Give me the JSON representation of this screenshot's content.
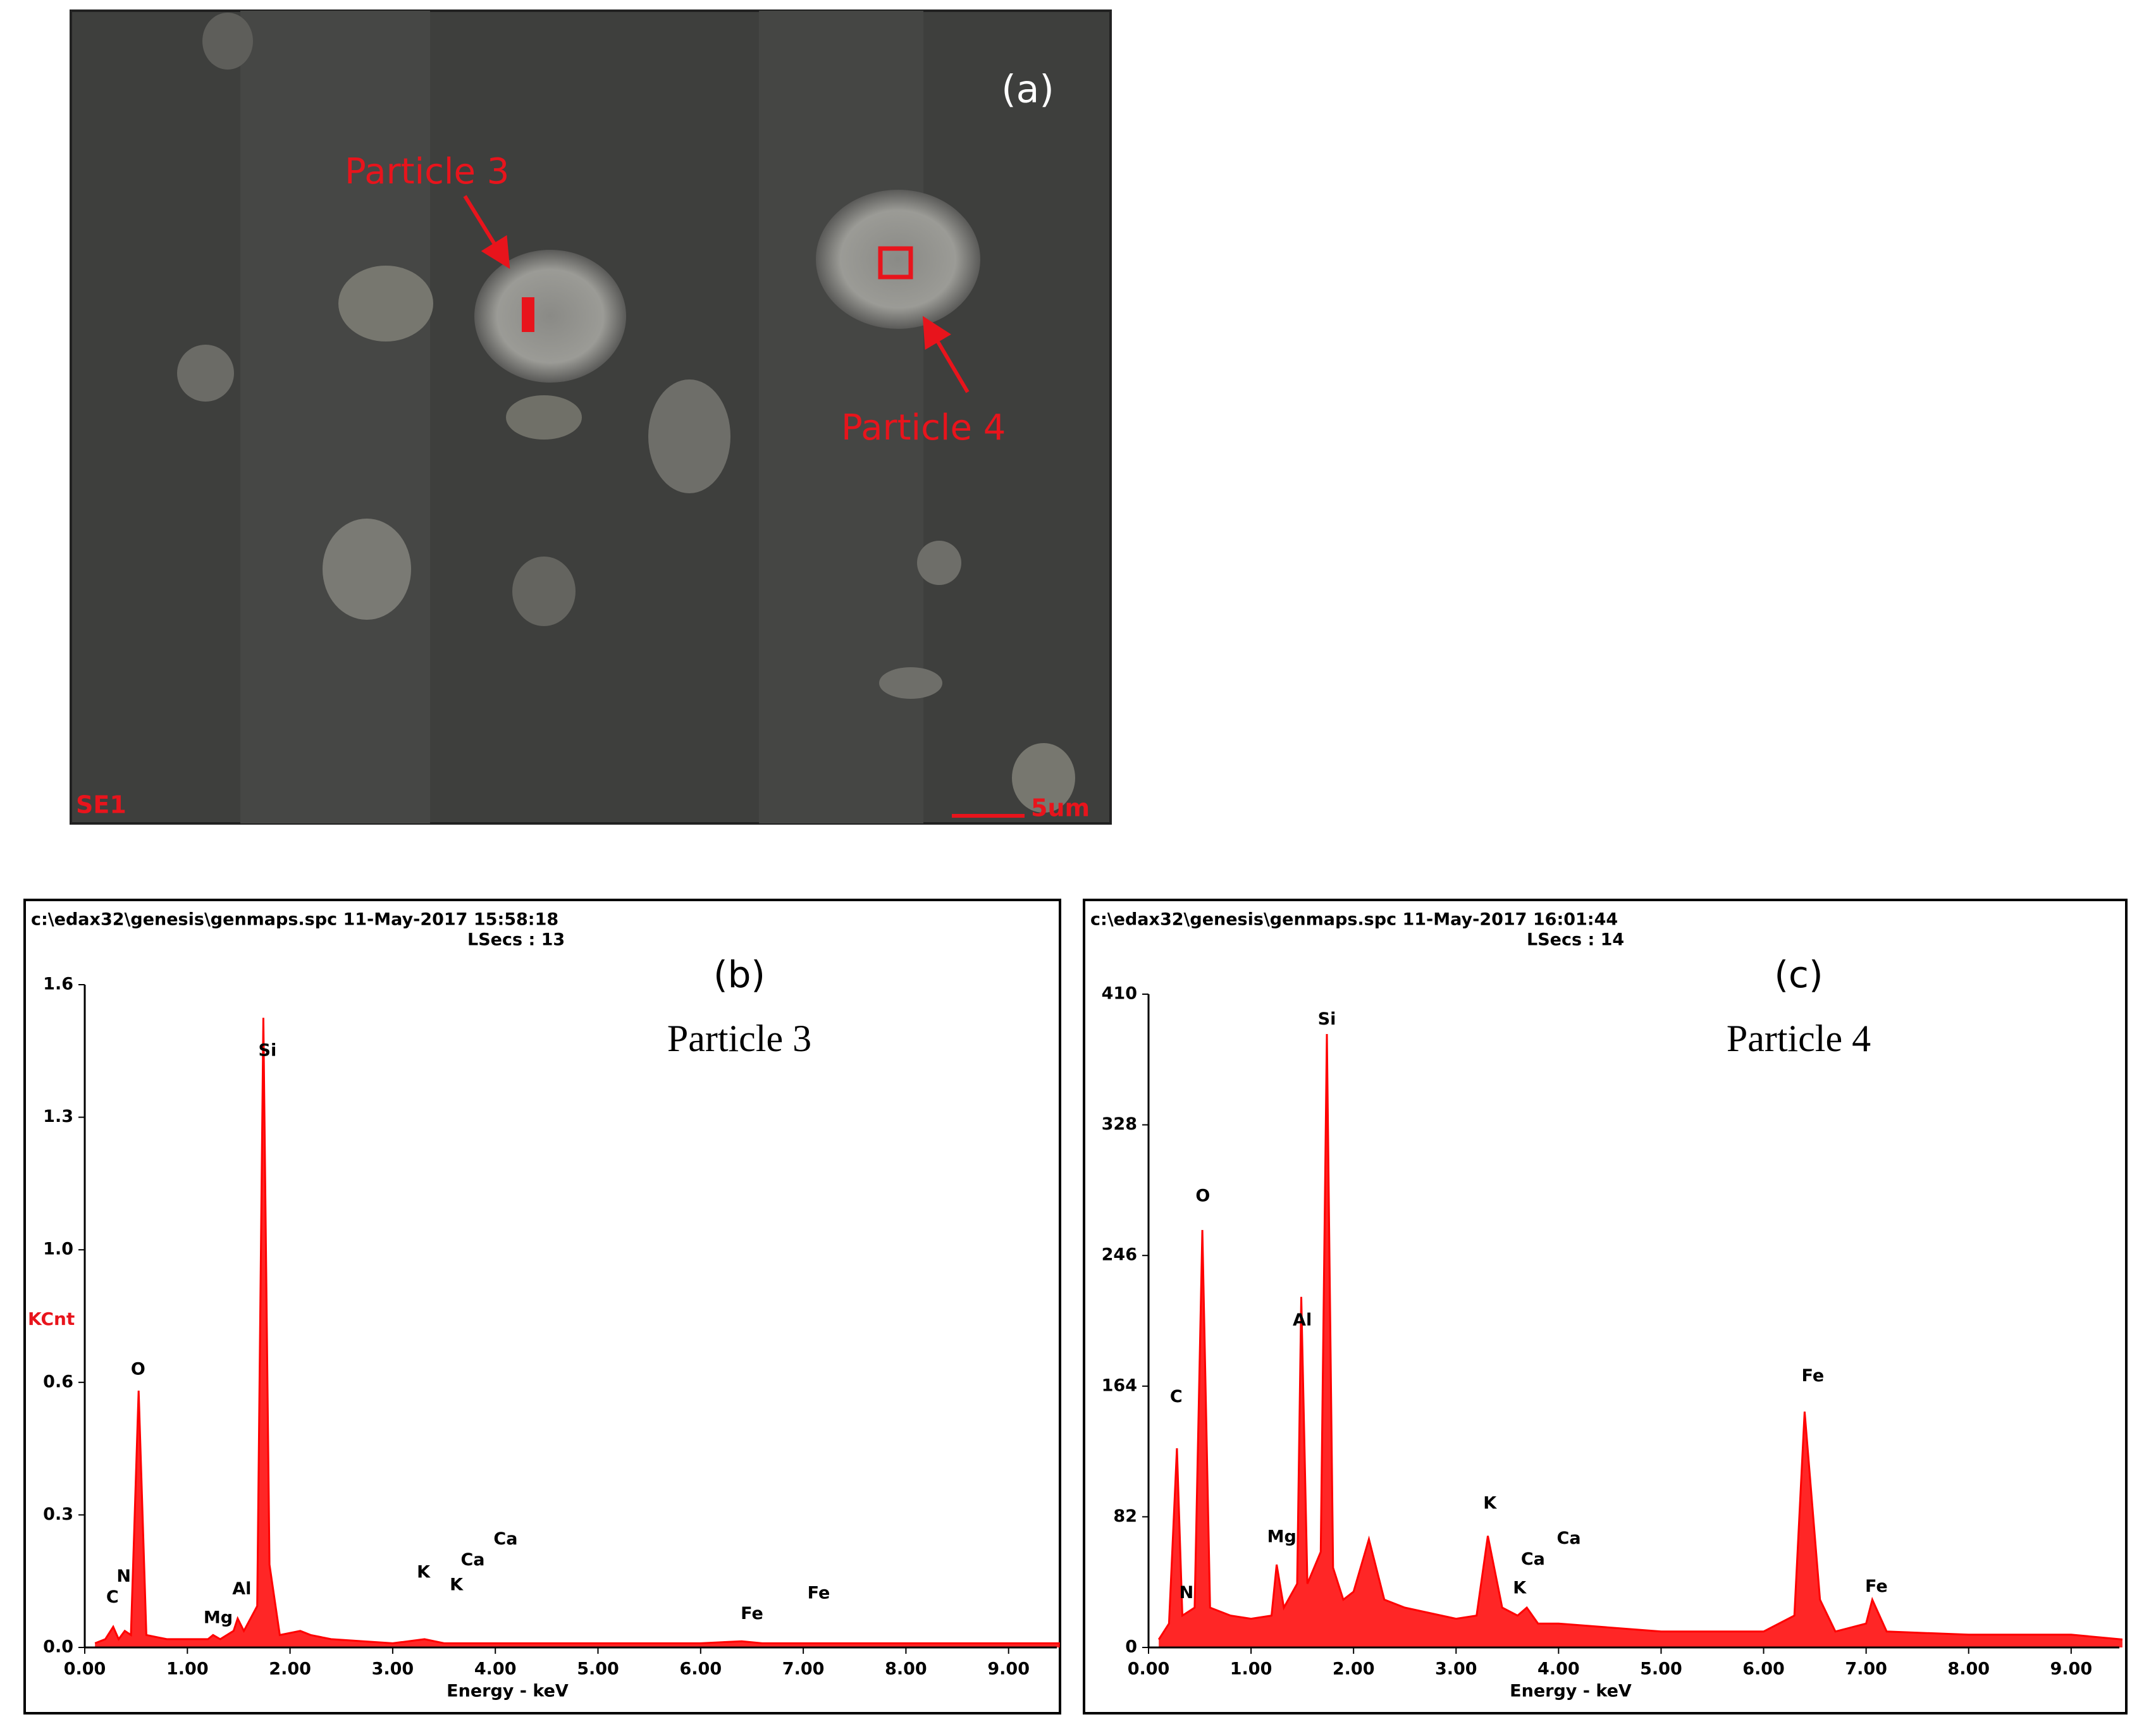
{
  "sem_image": {
    "label": "(a)",
    "annotations": [
      "Particle 3",
      "Particle 4"
    ],
    "detector": "SE1",
    "scale_bar": "5um"
  },
  "chart_data": [
    {
      "type": "area",
      "header": "c:\\edax32\\genesis\\genmaps.spc  11-May-2017 15:58:18",
      "subheader": "LSecs :  13",
      "panel": "(b)",
      "title": "Particle 3",
      "ylabel": "KCnt",
      "xlabel": "Energy - keV",
      "color": "#ff0000",
      "x": [
        0.1,
        0.2,
        0.277,
        0.33,
        0.39,
        0.45,
        0.525,
        0.6,
        0.8,
        1.0,
        1.2,
        1.25,
        1.32,
        1.45,
        1.49,
        1.55,
        1.68,
        1.74,
        1.8,
        1.9,
        2.1,
        2.2,
        2.4,
        3.0,
        3.31,
        3.5,
        4.0,
        5.0,
        6.0,
        6.4,
        6.6,
        7.0,
        8.0,
        9.0,
        9.5
      ],
      "series": [
        {
          "name": "Particle 3",
          "color": "#ff0000",
          "values": [
            0.01,
            0.02,
            0.05,
            0.02,
            0.04,
            0.03,
            0.62,
            0.03,
            0.02,
            0.02,
            0.02,
            0.03,
            0.02,
            0.04,
            0.07,
            0.04,
            0.1,
            1.52,
            0.2,
            0.03,
            0.04,
            0.03,
            0.02,
            0.01,
            0.02,
            0.01,
            0.01,
            0.01,
            0.01,
            0.015,
            0.01,
            0.01,
            0.01,
            0.01,
            0.01
          ]
        }
      ],
      "peak_labels": [
        {
          "text": "C",
          "x": 0.27,
          "y": 0.12
        },
        {
          "text": "N",
          "x": 0.38,
          "y": 0.17
        },
        {
          "text": "O",
          "x": 0.52,
          "y": 0.67
        },
        {
          "text": "Mg",
          "x": 1.3,
          "y": 0.07
        },
        {
          "text": "Al",
          "x": 1.53,
          "y": 0.14
        },
        {
          "text": "Si",
          "x": 1.78,
          "y": 1.44
        },
        {
          "text": "K",
          "x": 3.3,
          "y": 0.18
        },
        {
          "text": "K",
          "x": 3.62,
          "y": 0.15
        },
        {
          "text": "Ca",
          "x": 3.78,
          "y": 0.21
        },
        {
          "text": "Ca",
          "x": 4.1,
          "y": 0.26
        },
        {
          "text": "Fe",
          "x": 6.5,
          "y": 0.08
        },
        {
          "text": "Fe",
          "x": 7.15,
          "y": 0.13
        }
      ],
      "xlim": [
        0,
        9.47
      ],
      "ylim": [
        0,
        1.6
      ],
      "xticks": [
        {
          "value": 0,
          "label": "0.00"
        },
        {
          "value": 1,
          "label": "1.00"
        },
        {
          "value": 2,
          "label": "2.00"
        },
        {
          "value": 3,
          "label": "3.00"
        },
        {
          "value": 4,
          "label": "4.00"
        },
        {
          "value": 5,
          "label": "5.00"
        },
        {
          "value": 6,
          "label": "6.00"
        },
        {
          "value": 7,
          "label": "7.00"
        },
        {
          "value": 8,
          "label": "8.00"
        },
        {
          "value": 9,
          "label": "9.00"
        }
      ],
      "yticks": [
        {
          "value": 0,
          "label": "0.0"
        },
        {
          "value": 0.32,
          "label": "0.3"
        },
        {
          "value": 0.64,
          "label": "0.6"
        },
        {
          "value": 0.96,
          "label": "1.0"
        },
        {
          "value": 1.28,
          "label": "1.3"
        },
        1.6
      ]
    },
    {
      "type": "area",
      "header": "c:\\edax32\\genesis\\genmaps.spc  11-May-2017 16:01:44",
      "subheader": "LSecs :  14",
      "panel": "(c)",
      "title": "Particle 4",
      "xlabel": "Energy - keV",
      "color": "#ff0000",
      "x": [
        0.1,
        0.2,
        0.277,
        0.33,
        0.45,
        0.525,
        0.6,
        0.8,
        1.0,
        1.2,
        1.25,
        1.32,
        1.45,
        1.49,
        1.55,
        1.68,
        1.74,
        1.8,
        1.9,
        2.0,
        2.15,
        2.3,
        2.5,
        3.0,
        3.2,
        3.31,
        3.45,
        3.6,
        3.69,
        3.8,
        4.0,
        5.0,
        6.0,
        6.3,
        6.4,
        6.55,
        6.7,
        7.0,
        7.06,
        7.2,
        8.0,
        9.0,
        9.5
      ],
      "series": [
        {
          "name": "Particle 4",
          "color": "#ff0000",
          "values": [
            5,
            15,
            125,
            20,
            25,
            262,
            25,
            20,
            18,
            20,
            52,
            25,
            40,
            220,
            40,
            60,
            385,
            50,
            30,
            35,
            68,
            30,
            25,
            18,
            20,
            70,
            25,
            20,
            25,
            15,
            15,
            10,
            10,
            20,
            148,
            30,
            10,
            15,
            30,
            10,
            8,
            8,
            5
          ]
        }
      ],
      "peak_labels": [
        {
          "text": "C",
          "x": 0.27,
          "y": 157
        },
        {
          "text": "N",
          "x": 0.37,
          "y": 34
        },
        {
          "text": "O",
          "x": 0.53,
          "y": 283
        },
        {
          "text": "Mg",
          "x": 1.3,
          "y": 69
        },
        {
          "text": "Al",
          "x": 1.5,
          "y": 205
        },
        {
          "text": "Si",
          "x": 1.74,
          "y": 394
        },
        {
          "text": "K",
          "x": 3.33,
          "y": 90
        },
        {
          "text": "K",
          "x": 3.62,
          "y": 37
        },
        {
          "text": "Ca",
          "x": 3.75,
          "y": 55
        },
        {
          "text": "Ca",
          "x": 4.1,
          "y": 68
        },
        {
          "text": "Fe",
          "x": 6.48,
          "y": 170
        },
        {
          "text": "Fe",
          "x": 7.1,
          "y": 38
        }
      ],
      "xlim": [
        0,
        9.47
      ],
      "ylim": [
        0,
        410
      ],
      "xticks": [
        {
          "value": 0,
          "label": "0.00"
        },
        {
          "value": 1,
          "label": "1.00"
        },
        {
          "value": 2,
          "label": "2.00"
        },
        {
          "value": 3,
          "label": "3.00"
        },
        {
          "value": 4,
          "label": "4.00"
        },
        {
          "value": 5,
          "label": "5.00"
        },
        {
          "value": 6,
          "label": "6.00"
        },
        {
          "value": 7,
          "label": "7.00"
        },
        {
          "value": 8,
          "label": "8.00"
        },
        {
          "value": 9,
          "label": "9.00"
        }
      ],
      "yticks": [
        0,
        82,
        164,
        246,
        328,
        410
      ]
    }
  ]
}
